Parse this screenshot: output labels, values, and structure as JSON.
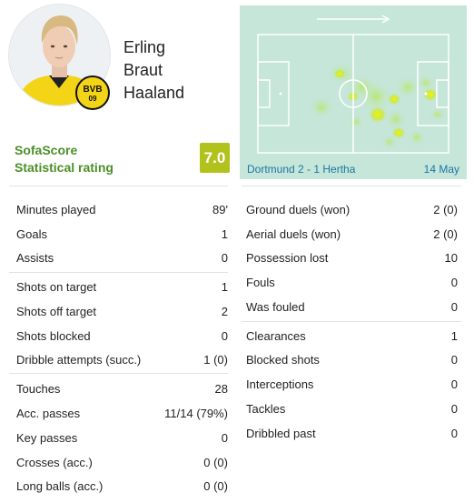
{
  "player": {
    "name_line1": "Erling",
    "name_line2": "Braut",
    "name_line3": "Haaland",
    "club_badge_text": "BVB",
    "club_badge_number": "09"
  },
  "rating": {
    "label_line1": "SofaScore",
    "label_line2": "Statistical rating",
    "value": "7.0",
    "badge_color": "#b0c21b"
  },
  "heatmap": {
    "match": "Dortmund 2 - 1 Hertha",
    "date": "14 May",
    "attack_direction": "right-arrow-icon"
  },
  "left_stats": [
    {
      "label": "Minutes played",
      "value": "89'"
    },
    {
      "label": "Goals",
      "value": "1"
    },
    {
      "label": "Assists",
      "value": "0"
    },
    {
      "label": "Shots on target",
      "value": "1"
    },
    {
      "label": "Shots off target",
      "value": "2"
    },
    {
      "label": "Shots blocked",
      "value": "0"
    },
    {
      "label": "Dribble attempts (succ.)",
      "value": "1 (0)"
    },
    {
      "label": "Touches",
      "value": "28"
    },
    {
      "label": "Acc. passes",
      "value": "11/14 (79%)"
    },
    {
      "label": "Key passes",
      "value": "0"
    },
    {
      "label": "Crosses (acc.)",
      "value": "0 (0)"
    },
    {
      "label": "Long balls (acc.)",
      "value": "0 (0)"
    }
  ],
  "right_stats": [
    {
      "label": "Ground duels (won)",
      "value": "2 (0)"
    },
    {
      "label": "Aerial duels (won)",
      "value": "2 (0)"
    },
    {
      "label": "Possession lost",
      "value": "10"
    },
    {
      "label": "Fouls",
      "value": "0"
    },
    {
      "label": "Was fouled",
      "value": "0"
    },
    {
      "label": "Clearances",
      "value": "1"
    },
    {
      "label": "Blocked shots",
      "value": "0"
    },
    {
      "label": "Interceptions",
      "value": "0"
    },
    {
      "label": "Tackles",
      "value": "0"
    },
    {
      "label": "Dribbled past",
      "value": "0"
    }
  ]
}
